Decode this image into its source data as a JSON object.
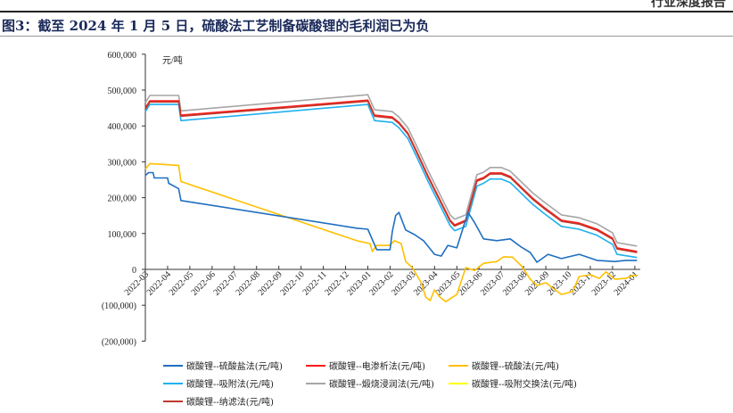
{
  "header_tag": "行业深度报告",
  "title": "图3：截至 2024 年 1 月 5 日，硫酸法工艺制备碳酸锂的毛利润已为负",
  "chart_data": {
    "type": "line",
    "title": "图3：截至 2024 年 1 月 5 日，硫酸法工艺制备碳酸锂的毛利润已为负",
    "ylabel": "元/吨",
    "ylim": [
      -200000,
      600000
    ],
    "yticks": [
      600000,
      500000,
      400000,
      300000,
      200000,
      100000,
      0,
      -100000,
      -200000
    ],
    "ytick_labels": [
      "600,000",
      "500,000",
      "400,000",
      "300,000",
      "200,000",
      "100,000",
      "0",
      "(100,000)",
      "(200,000)"
    ],
    "negative_label_color": "#e00000",
    "xtick_labels": [
      "2022-03",
      "2022-04",
      "2022-05",
      "2022-06",
      "2022-07",
      "2022-08",
      "2022-09",
      "2022-10",
      "2022-11",
      "2022-12",
      "2023-01",
      "2023-02",
      "2023-03",
      "2023-04",
      "2023-05",
      "2023-06",
      "2023-07",
      "2023-08",
      "2023-09",
      "2023-10",
      "2023-11",
      "2023-12",
      "2024-01"
    ],
    "x_unit": "months since 2022-03",
    "legend_position": "bottom",
    "series": [
      {
        "name": "碳酸锂--硫酸盐法(元/吨)",
        "color": "#1f6fc0",
        "points": [
          [
            0,
            262000
          ],
          [
            0.15,
            270000
          ],
          [
            0.35,
            270000
          ],
          [
            0.4,
            255000
          ],
          [
            1.0,
            255000
          ],
          [
            1.05,
            240000
          ],
          [
            1.5,
            225000
          ],
          [
            1.6,
            192000
          ],
          [
            9.5,
            115000
          ],
          [
            10,
            112000
          ],
          [
            10.4,
            55000
          ],
          [
            11,
            55000
          ],
          [
            11.1,
            105000
          ],
          [
            11.25,
            150000
          ],
          [
            11.4,
            159000
          ],
          [
            11.7,
            110000
          ],
          [
            12.1,
            97000
          ],
          [
            12.5,
            80000
          ],
          [
            13.0,
            42000
          ],
          [
            13.3,
            37000
          ],
          [
            13.6,
            67000
          ],
          [
            14.0,
            60000
          ],
          [
            14.5,
            159000
          ],
          [
            14.8,
            130000
          ],
          [
            15.2,
            85000
          ],
          [
            15.8,
            80000
          ],
          [
            16.4,
            85000
          ],
          [
            16.9,
            62000
          ],
          [
            17.3,
            47000
          ],
          [
            17.6,
            20000
          ],
          [
            18.1,
            42000
          ],
          [
            18.7,
            30000
          ],
          [
            19.5,
            42000
          ],
          [
            20.3,
            25000
          ],
          [
            21.1,
            22000
          ],
          [
            21.6,
            25000
          ],
          [
            22.1,
            25000
          ]
        ]
      },
      {
        "name": "碳酸锂--电渗析法(元/吨)",
        "color": "#ff1a1a",
        "points": [
          [
            0,
            450000
          ],
          [
            0.2,
            470000
          ],
          [
            1.5,
            470000
          ],
          [
            1.6,
            430000
          ],
          [
            10,
            472000
          ],
          [
            10.3,
            430000
          ],
          [
            11.1,
            425000
          ],
          [
            11.4,
            410000
          ],
          [
            11.8,
            380000
          ],
          [
            12.2,
            328000
          ],
          [
            12.7,
            261000
          ],
          [
            13.3,
            187000
          ],
          [
            13.7,
            137000
          ],
          [
            13.9,
            124000
          ],
          [
            14.4,
            137000
          ],
          [
            14.9,
            249000
          ],
          [
            15.0,
            252000
          ],
          [
            15.2,
            256000
          ],
          [
            15.5,
            269000
          ],
          [
            16.0,
            269000
          ],
          [
            16.4,
            259000
          ],
          [
            17.4,
            199000
          ],
          [
            17.9,
            174000
          ],
          [
            18.7,
            137000
          ],
          [
            19.5,
            129000
          ],
          [
            20.3,
            112000
          ],
          [
            21.0,
            87000
          ],
          [
            21.2,
            60000
          ],
          [
            22.1,
            50000
          ]
        ]
      },
      {
        "name": "碳酸锂--硫酸法(元/吨)",
        "color": "#ffc000",
        "points": [
          [
            0,
            280000
          ],
          [
            0.2,
            295000
          ],
          [
            1.5,
            290000
          ],
          [
            1.6,
            245000
          ],
          [
            9.5,
            80000
          ],
          [
            10.1,
            72000
          ],
          [
            10.2,
            50000
          ],
          [
            10.4,
            67000
          ],
          [
            11,
            67000
          ],
          [
            11.2,
            80000
          ],
          [
            11.5,
            72000
          ],
          [
            11.7,
            22000
          ],
          [
            12.0,
            5000
          ],
          [
            12.4,
            -37000
          ],
          [
            12.6,
            -77000
          ],
          [
            12.8,
            -87000
          ],
          [
            13.0,
            -57000
          ],
          [
            13.2,
            -75000
          ],
          [
            13.5,
            -90000
          ],
          [
            14.0,
            -70000
          ],
          [
            14.4,
            5000
          ],
          [
            14.8,
            -3000
          ],
          [
            15.2,
            17000
          ],
          [
            15.8,
            22000
          ],
          [
            16.1,
            35000
          ],
          [
            16.5,
            34000
          ],
          [
            16.9,
            10000
          ],
          [
            17.3,
            -27000
          ],
          [
            17.6,
            -45000
          ],
          [
            18.0,
            -37000
          ],
          [
            18.7,
            -70000
          ],
          [
            19.2,
            -62000
          ],
          [
            19.5,
            -20000
          ],
          [
            20.0,
            -15000
          ],
          [
            20.4,
            -25000
          ],
          [
            20.7,
            -7000
          ],
          [
            21.1,
            -27000
          ],
          [
            21.6,
            -25000
          ],
          [
            21.9,
            -17000
          ],
          [
            22.1,
            -17000
          ]
        ]
      },
      {
        "name": "碳酸锂--吸附法(元/吨)",
        "color": "#1fb0f0",
        "points": [
          [
            0,
            440000
          ],
          [
            0.2,
            460000
          ],
          [
            1.5,
            460000
          ],
          [
            1.6,
            415000
          ],
          [
            10,
            460000
          ],
          [
            10.3,
            415000
          ],
          [
            11.1,
            410000
          ],
          [
            11.4,
            395000
          ],
          [
            11.8,
            365000
          ],
          [
            12.2,
            313000
          ],
          [
            12.7,
            246000
          ],
          [
            13.3,
            172000
          ],
          [
            13.7,
            122000
          ],
          [
            13.9,
            108000
          ],
          [
            14.4,
            120000
          ],
          [
            14.9,
            232000
          ],
          [
            15.2,
            240000
          ],
          [
            15.5,
            252000
          ],
          [
            16.0,
            252000
          ],
          [
            16.4,
            242000
          ],
          [
            17.4,
            182000
          ],
          [
            17.9,
            157000
          ],
          [
            18.7,
            120000
          ],
          [
            19.5,
            112000
          ],
          [
            20.3,
            95000
          ],
          [
            21.0,
            70000
          ],
          [
            21.2,
            42000
          ],
          [
            22.1,
            33000
          ]
        ]
      },
      {
        "name": "碳酸锂--煅烧浸润法(元/吨)",
        "color": "#a6a6a6",
        "points": [
          [
            0,
            465000
          ],
          [
            0.2,
            485000
          ],
          [
            1.5,
            485000
          ],
          [
            1.6,
            442000
          ],
          [
            10,
            487000
          ],
          [
            10.3,
            445000
          ],
          [
            11.1,
            440000
          ],
          [
            11.4,
            425000
          ],
          [
            11.8,
            395000
          ],
          [
            12.2,
            343000
          ],
          [
            12.7,
            276000
          ],
          [
            13.3,
            202000
          ],
          [
            13.7,
            152000
          ],
          [
            13.9,
            140000
          ],
          [
            14.4,
            152000
          ],
          [
            14.9,
            264000
          ],
          [
            15.2,
            271000
          ],
          [
            15.5,
            284000
          ],
          [
            16.0,
            284000
          ],
          [
            16.4,
            274000
          ],
          [
            17.4,
            214000
          ],
          [
            17.9,
            189000
          ],
          [
            18.7,
            152000
          ],
          [
            19.5,
            144000
          ],
          [
            20.3,
            127000
          ],
          [
            21.0,
            102000
          ],
          [
            21.2,
            75000
          ],
          [
            22.1,
            65000
          ]
        ]
      },
      {
        "name": "碳酸锂--吸附交换法(元/吨)",
        "color": "#ffff00",
        "points": []
      },
      {
        "name": "碳酸锂--纳滤法(元/吨)",
        "color": "#c0392b",
        "points": [
          [
            0,
            447000
          ],
          [
            0.2,
            467000
          ],
          [
            1.5,
            467000
          ],
          [
            1.6,
            427000
          ],
          [
            10,
            469000
          ],
          [
            10.3,
            427000
          ],
          [
            11.1,
            422000
          ],
          [
            11.4,
            407000
          ],
          [
            11.8,
            377000
          ],
          [
            12.2,
            325000
          ],
          [
            12.7,
            258000
          ],
          [
            13.3,
            184000
          ],
          [
            13.7,
            134000
          ],
          [
            13.9,
            121000
          ],
          [
            14.4,
            134000
          ],
          [
            14.9,
            246000
          ],
          [
            15.2,
            253000
          ],
          [
            15.5,
            266000
          ],
          [
            16.0,
            266000
          ],
          [
            16.4,
            256000
          ],
          [
            17.4,
            196000
          ],
          [
            17.9,
            171000
          ],
          [
            18.7,
            134000
          ],
          [
            19.5,
            126000
          ],
          [
            20.3,
            109000
          ],
          [
            21.0,
            84000
          ],
          [
            21.2,
            57000
          ],
          [
            22.1,
            47000
          ]
        ]
      }
    ]
  }
}
